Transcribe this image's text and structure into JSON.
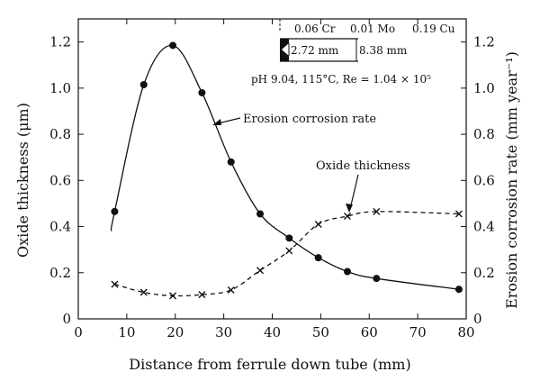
{
  "chart_data": {
    "type": "line",
    "xlabel": "Distance from ferrule down tube (mm)",
    "ylabel_left": "Oxide thickness (μm)",
    "ylabel_right": "Erosion corrosion rate (mm year⁻¹)",
    "xlim": [
      0,
      80
    ],
    "ylim_left": [
      0,
      1.3
    ],
    "ylim_right": [
      0,
      1.3
    ],
    "xticks": [
      "0",
      "10",
      "20",
      "30",
      "40",
      "50",
      "60",
      "70",
      "80"
    ],
    "yticks_left": [
      "0",
      "0.2",
      "0.4",
      "0.6",
      "0.8",
      "1.0",
      "1.2"
    ],
    "yticks_right": [
      "0",
      "0.2",
      "0.4",
      "0.6",
      "0.8",
      "1.0",
      "1.2"
    ],
    "grid": false,
    "series": [
      {
        "name": "Erosion corrosion rate",
        "marker": "filled-circle",
        "axis": "right",
        "points": [
          [
            7.5,
            0.465
          ],
          [
            13.5,
            1.015
          ],
          [
            19.5,
            1.185
          ],
          [
            25.5,
            0.98
          ],
          [
            31.5,
            0.68
          ],
          [
            37.5,
            0.455
          ],
          [
            43.5,
            0.35
          ],
          [
            49.5,
            0.265
          ],
          [
            55.5,
            0.205
          ],
          [
            61.5,
            0.175
          ],
          [
            78.5,
            0.128
          ]
        ],
        "curve_start": [
          6.8,
          0.38
        ]
      },
      {
        "name": "Oxide thickness",
        "marker": "x",
        "axis": "left",
        "points": [
          [
            7.5,
            0.15
          ],
          [
            13.5,
            0.115
          ],
          [
            19.5,
            0.1
          ],
          [
            25.5,
            0.105
          ],
          [
            31.5,
            0.125
          ],
          [
            37.5,
            0.21
          ],
          [
            43.5,
            0.295
          ],
          [
            49.5,
            0.41
          ],
          [
            55.5,
            0.445
          ],
          [
            61.5,
            0.465
          ],
          [
            78.5,
            0.455
          ]
        ]
      }
    ],
    "annotations": {
      "composition": [
        "0.06 Cr",
        "0.01 Mo",
        "0.19 Cu"
      ],
      "dim_inner": "2.72 mm",
      "dim_outer": "8.38 mm",
      "conditions": "pH 9.04, 115°C, Re = 1.04 × 10⁵",
      "label_erosion": "Erosion corrosion rate",
      "label_oxide": "Oxide thickness"
    }
  }
}
